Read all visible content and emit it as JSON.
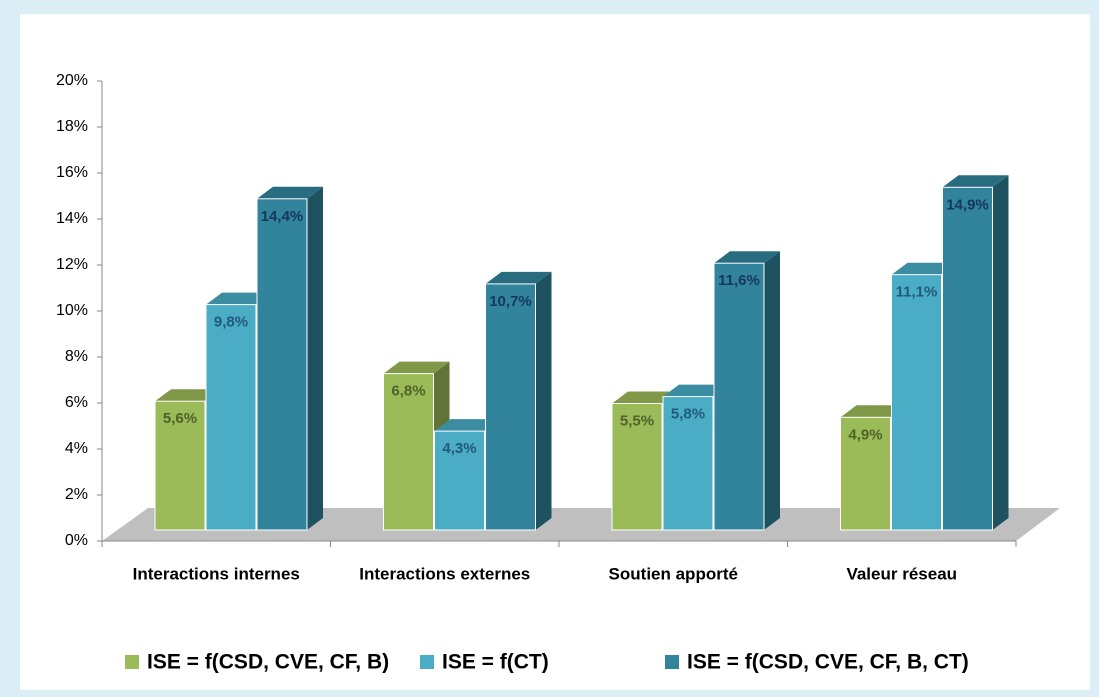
{
  "chart_data": {
    "type": "bar3d",
    "categories": [
      "Interactions internes",
      "Interactions externes",
      "Soutien apporté",
      "Valeur réseau"
    ],
    "series": [
      {
        "name": "ISE = f(CSD, CVE, CF, B)",
        "color": "#9bbb59",
        "values": [
          5.6,
          6.8,
          5.5,
          4.9
        ],
        "value_labels": [
          "5,6%",
          "6,8%",
          "5,5%",
          "4,9%"
        ]
      },
      {
        "name": "ISE = f(CT)",
        "color": "#4bacc6",
        "values": [
          9.8,
          4.3,
          5.8,
          11.1
        ],
        "value_labels": [
          "9,8%",
          "4,3%",
          "5,8%",
          "11,1%"
        ]
      },
      {
        "name": "ISE = f(CSD, CVE, CF, B, CT)",
        "color": "#31849b",
        "values": [
          14.4,
          10.7,
          11.6,
          14.9
        ],
        "value_labels": [
          "14,4%",
          "10,7%",
          "11,6%",
          "14,9%"
        ]
      }
    ],
    "ylim": [
      0,
      20
    ],
    "yticks": [
      {
        "value": 0,
        "label": "0%"
      },
      {
        "value": 2,
        "label": "2%"
      },
      {
        "value": 4,
        "label": "4%"
      },
      {
        "value": 6,
        "label": "6%"
      },
      {
        "value": 8,
        "label": "8%"
      },
      {
        "value": 10,
        "label": "10%"
      },
      {
        "value": 12,
        "label": "12%"
      },
      {
        "value": 14,
        "label": "14%"
      },
      {
        "value": 16,
        "label": "16%"
      },
      {
        "value": 18,
        "label": "18%"
      },
      {
        "value": 20,
        "label": "20%"
      }
    ],
    "legend": "bottom"
  }
}
